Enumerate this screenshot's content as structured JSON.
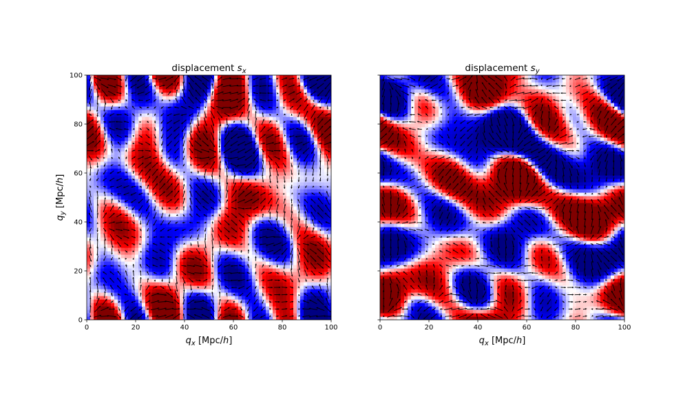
{
  "chart_data": [
    {
      "type": "heatmap",
      "title_main": "displacement ",
      "title_var": "s",
      "title_sub": "x",
      "xlabel_var": "q",
      "xlabel_sub": "x",
      "xlabel_unit_pre": " [Mpc/",
      "xlabel_unit_h": "h",
      "xlabel_unit_post": "]",
      "ylabel_var": "q",
      "ylabel_sub": "y",
      "ylabel_unit_pre": " [Mpc/",
      "ylabel_unit_h": "h",
      "ylabel_unit_post": "]",
      "xlim": [
        0,
        100
      ],
      "ylim": [
        0,
        100
      ],
      "xticks": [
        "0",
        "20",
        "40",
        "60",
        "80",
        "100"
      ],
      "yticks": [
        "0",
        "20",
        "40",
        "60",
        "80",
        "100"
      ],
      "show_ytick_labels": true,
      "colormap": "seismic",
      "overlay": "quiver",
      "component": "x"
    },
    {
      "type": "heatmap",
      "title_main": "displacement ",
      "title_var": "s",
      "title_sub": "y",
      "xlabel_var": "q",
      "xlabel_sub": "x",
      "xlabel_unit_pre": " [Mpc/",
      "xlabel_unit_h": "h",
      "xlabel_unit_post": "]",
      "xlim": [
        0,
        100
      ],
      "ylim": [
        0,
        100
      ],
      "xticks": [
        "0",
        "20",
        "40",
        "60",
        "80",
        "100"
      ],
      "yticks": [
        "0",
        "20",
        "40",
        "60",
        "80",
        "100"
      ],
      "show_ytick_labels": false,
      "colormap": "seismic",
      "overlay": "quiver",
      "component": "y"
    }
  ]
}
